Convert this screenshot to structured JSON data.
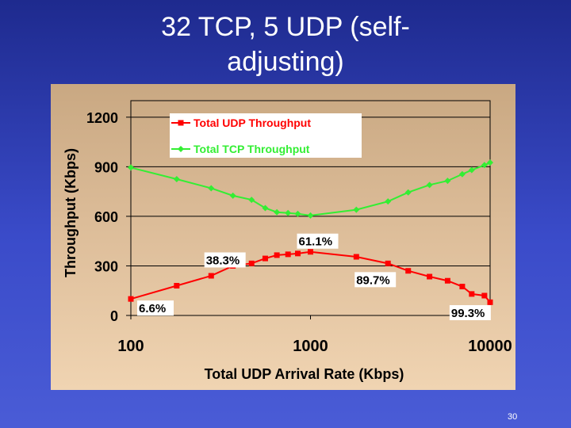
{
  "slide": {
    "title_line1": "32 TCP, 5 UDP (self-",
    "title_line2": "adjusting)",
    "page_number": "30"
  },
  "colors": {
    "background": "#2f3db4",
    "udp": "#ff0000",
    "tcp": "#33ee33"
  },
  "chart_data": {
    "type": "line",
    "xlabel": "Total UDP Arrival Rate (Kbps)",
    "ylabel": "Throughput (Kbps)",
    "xscale": "log",
    "xlim": [
      100,
      10000
    ],
    "ylim": [
      0,
      1300
    ],
    "x_ticks": [
      "100",
      "1000",
      "10000"
    ],
    "y_ticks": [
      "0",
      "300",
      "600",
      "900",
      "1200"
    ],
    "grid": true,
    "legend_position": "top-left",
    "series": [
      {
        "name": "Total UDP Throughput",
        "color": "#ff0000",
        "marker": "square",
        "points": [
          [
            100,
            100
          ],
          [
            180,
            180
          ],
          [
            280,
            240
          ],
          [
            370,
            300
          ],
          [
            470,
            315
          ],
          [
            560,
            345
          ],
          [
            650,
            365
          ],
          [
            750,
            370
          ],
          [
            850,
            375
          ],
          [
            1000,
            385
          ],
          [
            1800,
            355
          ],
          [
            2700,
            315
          ],
          [
            3500,
            270
          ],
          [
            4600,
            235
          ],
          [
            5800,
            210
          ],
          [
            7000,
            175
          ],
          [
            7900,
            130
          ],
          [
            9300,
            120
          ],
          [
            10000,
            80
          ]
        ]
      },
      {
        "name": "Total TCP Throughput",
        "color": "#33ee33",
        "marker": "diamond",
        "points": [
          [
            100,
            895
          ],
          [
            180,
            825
          ],
          [
            280,
            770
          ],
          [
            370,
            725
          ],
          [
            470,
            700
          ],
          [
            560,
            650
          ],
          [
            650,
            625
          ],
          [
            750,
            620
          ],
          [
            850,
            615
          ],
          [
            1000,
            605
          ],
          [
            1800,
            640
          ],
          [
            2700,
            690
          ],
          [
            3500,
            745
          ],
          [
            4600,
            790
          ],
          [
            5800,
            815
          ],
          [
            7000,
            855
          ],
          [
            7900,
            880
          ],
          [
            9300,
            910
          ],
          [
            10000,
            925
          ]
        ]
      }
    ],
    "annotations": [
      "6.6%",
      "38.3%",
      "61.1%",
      "89.7%",
      "99.3%"
    ]
  }
}
